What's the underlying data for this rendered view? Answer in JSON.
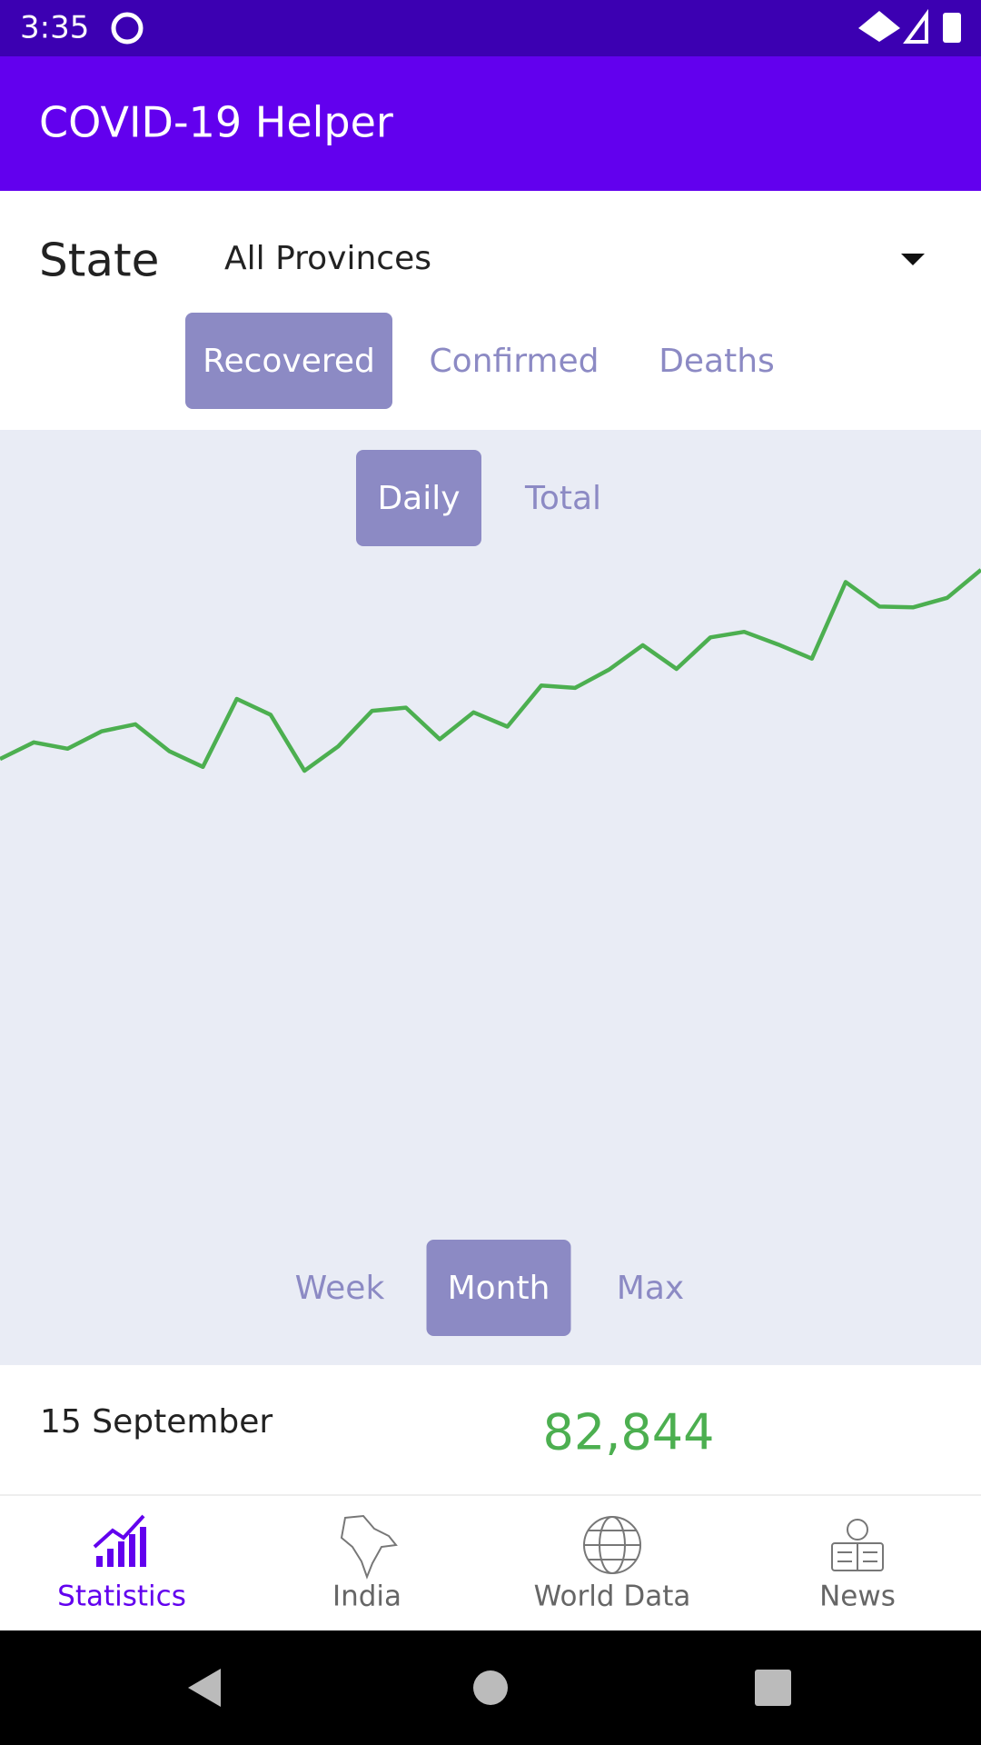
{
  "status_bar": {
    "time": "3:35"
  },
  "app_bar": {
    "title": "COVID-19 Helper"
  },
  "state": {
    "label": "State",
    "selected": "All Provinces"
  },
  "metric_tabs": [
    "Recovered",
    "Confirmed",
    "Deaths"
  ],
  "mode_tabs": [
    "Daily",
    "Total"
  ],
  "range_tabs": [
    "Week",
    "Month",
    "Max"
  ],
  "chart_data": {
    "type": "line",
    "color": "#4caf50",
    "values": [
      58900,
      61000,
      60200,
      62400,
      63300,
      59900,
      57900,
      66500,
      64500,
      57400,
      60500,
      65000,
      65400,
      61400,
      64800,
      63000,
      68200,
      67900,
      70200,
      73300,
      70300,
      74300,
      75000,
      73400,
      71600,
      81300,
      78200,
      78100,
      79300,
      82844
    ]
  },
  "summary": {
    "date": "15 September",
    "value": "82,844"
  },
  "nav": [
    "Statistics",
    "India",
    "World Data",
    "News"
  ]
}
